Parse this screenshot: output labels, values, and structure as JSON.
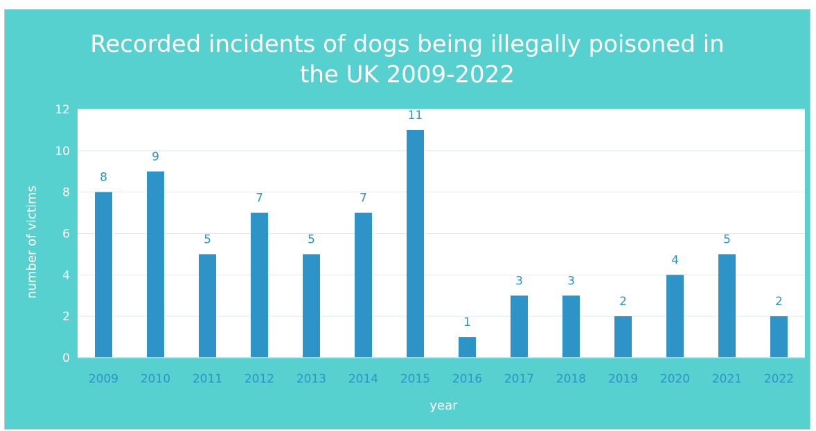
{
  "chart_data": {
    "type": "bar",
    "title_lines": [
      "Recorded incidents of dogs being illegally poisoned in",
      "the UK 2009-2022"
    ],
    "xlabel": "year",
    "ylabel": "number of victims",
    "categories": [
      "2009",
      "2010",
      "2011",
      "2012",
      "2013",
      "2014",
      "2015",
      "2016",
      "2017",
      "2018",
      "2019",
      "2020",
      "2021",
      "2022"
    ],
    "values": [
      8,
      9,
      5,
      7,
      5,
      7,
      11,
      1,
      3,
      3,
      2,
      4,
      5,
      2
    ],
    "ylim": [
      0,
      12
    ],
    "yticks": [
      0,
      2,
      4,
      6,
      8,
      10,
      12
    ],
    "grid": true,
    "data_labels": true,
    "colors": {
      "background": "#57d0d0",
      "plot_area": "#ffffff",
      "bar": "#2e94c7",
      "axis_text": "#2e94c7",
      "gridline": "#d9eef5"
    }
  }
}
